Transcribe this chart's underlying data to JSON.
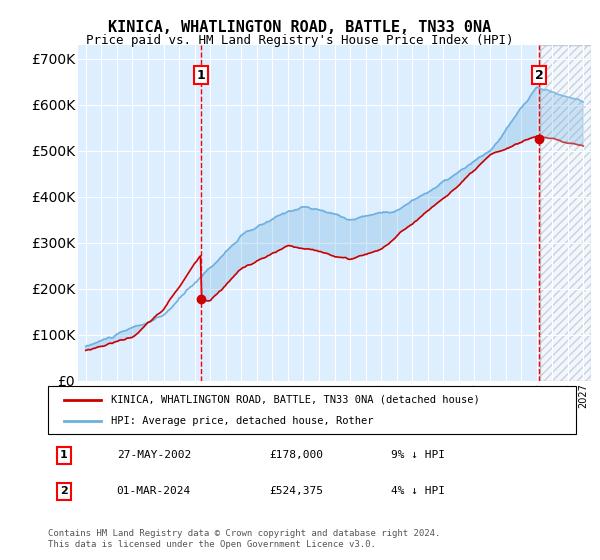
{
  "title": "KINICA, WHATLINGTON ROAD, BATTLE, TN33 0NA",
  "subtitle": "Price paid vs. HM Land Registry's House Price Index (HPI)",
  "legend_line1": "KINICA, WHATLINGTON ROAD, BATTLE, TN33 0NA (detached house)",
  "legend_line2": "HPI: Average price, detached house, Rother",
  "sale1_label": "1",
  "sale1_date": "27-MAY-2002",
  "sale1_price": "£178,000",
  "sale1_hpi": "9% ↓ HPI",
  "sale2_label": "2",
  "sale2_date": "01-MAR-2024",
  "sale2_price": "£524,375",
  "sale2_hpi": "4% ↓ HPI",
  "footer": "Contains HM Land Registry data © Crown copyright and database right 2024.\nThis data is licensed under the Open Government Licence v3.0.",
  "hpi_color": "#6eb0e0",
  "sale_color": "#cc0000",
  "sale1_x": 2002.4,
  "sale1_y": 178000,
  "sale2_x": 2024.17,
  "sale2_y": 524375,
  "hpi_sale1_y": 195000,
  "hpi_sale2_y": 547000,
  "ylim": [
    0,
    730000
  ],
  "xlim_start": 1994.5,
  "xlim_end": 2027.5,
  "future_start": 2024.25
}
